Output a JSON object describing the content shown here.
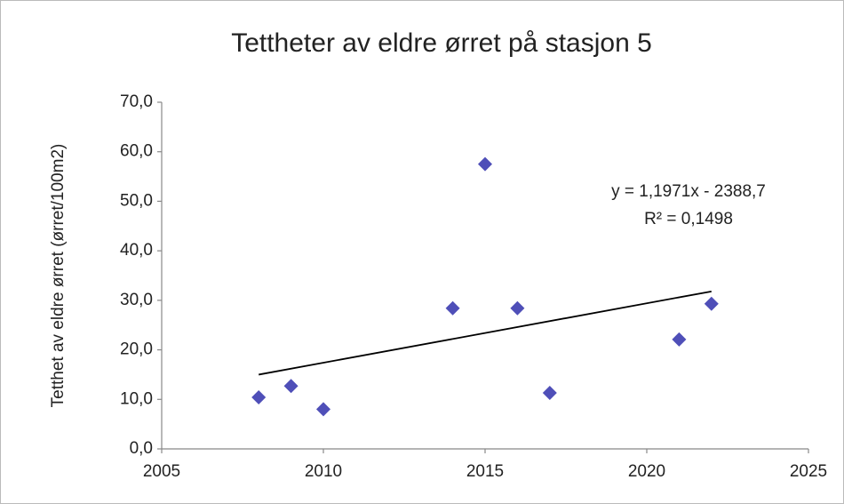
{
  "chart_data": {
    "type": "scatter",
    "title": "Tettheter av eldre ørret på stasjon 5",
    "y_label": "Tetthet av eldre ørret (ørret/100m2)",
    "x": [
      2008,
      2009,
      2010,
      2014,
      2015,
      2016,
      2017,
      2021,
      2022
    ],
    "values": [
      10.4,
      12.7,
      8.0,
      28.4,
      57.5,
      28.4,
      11.3,
      22.1,
      29.3
    ],
    "color": "#4f4fb8",
    "trendline": {
      "x": [
        2008,
        2022
      ],
      "values": [
        15.0,
        31.8
      ],
      "color": "#000000"
    },
    "annotations": [
      "y = 1,1971x - 2388,7",
      "R² = 0,1498"
    ],
    "xlim": [
      2005,
      2025
    ],
    "xticks": [
      2005,
      2010,
      2015,
      2020,
      2025
    ],
    "ylim": [
      0,
      70
    ],
    "yticks": [
      {
        "value": 0,
        "label": "0,0"
      },
      {
        "value": 10,
        "label": "10,0"
      },
      {
        "value": 20,
        "label": "20,0"
      },
      {
        "value": 30,
        "label": "30,0"
      },
      {
        "value": 40,
        "label": "40,0"
      },
      {
        "value": 50,
        "label": "50,0"
      },
      {
        "value": 60,
        "label": "60,0"
      },
      {
        "value": 70,
        "label": "70,0"
      }
    ]
  }
}
